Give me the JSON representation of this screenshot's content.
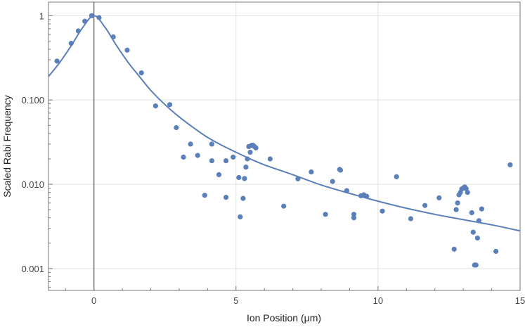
{
  "chart_data": {
    "type": "scatter",
    "title": "",
    "xlabel": "Ion Position (μm)",
    "ylabel": "Scaled Rabi Frequency",
    "xlim": [
      -1.6,
      15
    ],
    "ylim": [
      0.00055,
      1.45
    ],
    "yscale": "log",
    "grid": true,
    "legend": "none",
    "xticks": [
      0,
      5,
      10,
      15
    ],
    "xtick_labels": [
      "0",
      "5",
      "10",
      "15"
    ],
    "yticks": [
      1,
      0.1,
      0.01,
      0.001
    ],
    "ytick_labels": [
      "1",
      "0.100",
      "0.010",
      "0.001"
    ],
    "colors": {
      "points": "#5b7fb8",
      "curve": "#5b7fb8",
      "grid": "#e3e3e3",
      "axis": "#777777",
      "zero_line": "#555555"
    },
    "series": [
      {
        "kind": "points",
        "x": [
          -1.3,
          -0.8,
          -0.55,
          -0.32,
          -0.08,
          0.18,
          0.68,
          1.17,
          1.67,
          2.17,
          2.67,
          2.9,
          3.15,
          3.4,
          3.65,
          3.9,
          4.15,
          4.15,
          4.4,
          4.65,
          4.65,
          4.9,
          5.1,
          5.15,
          5.25,
          5.3,
          5.35,
          5.4,
          5.45,
          5.5,
          5.55,
          5.6,
          5.65,
          5.7,
          6.2,
          6.68,
          7.18,
          7.65,
          8.15,
          8.4,
          8.65,
          8.68,
          8.9,
          9.15,
          9.15,
          9.4,
          9.5,
          9.6,
          10.15,
          10.65,
          11.15,
          11.65,
          12.15,
          12.68,
          12.75,
          12.8,
          12.85,
          12.9,
          12.95,
          13.0,
          13.05,
          13.1,
          13.15,
          13.3,
          13.35,
          13.4,
          13.45,
          13.5,
          13.55,
          13.65,
          14.15,
          14.65
        ],
        "y": [
          0.29,
          0.47,
          0.66,
          0.86,
          1.0,
          0.95,
          0.56,
          0.39,
          0.21,
          0.085,
          0.088,
          0.047,
          0.021,
          0.03,
          0.022,
          0.0074,
          0.019,
          0.03,
          0.013,
          0.007,
          0.019,
          0.021,
          0.012,
          0.0041,
          0.0068,
          0.0117,
          0.016,
          0.02,
          0.028,
          0.024,
          0.029,
          0.029,
          0.028,
          0.027,
          0.02,
          0.0055,
          0.0116,
          0.014,
          0.0044,
          0.0108,
          0.015,
          0.0147,
          0.0084,
          0.0044,
          0.004,
          0.0073,
          0.0075,
          0.0072,
          0.0048,
          0.0123,
          0.0039,
          0.0056,
          0.0069,
          0.0017,
          0.005,
          0.006,
          0.0075,
          0.008,
          0.0088,
          0.009,
          0.0093,
          0.0089,
          0.008,
          0.0046,
          0.0027,
          0.0011,
          0.0011,
          0.0023,
          0.0037,
          0.0051,
          0.0016,
          0.017
        ]
      },
      {
        "kind": "fit_curve",
        "x": [
          -1.6,
          -1.2,
          -0.8,
          -0.4,
          0.0,
          0.4,
          0.8,
          1.2,
          1.6,
          2.0,
          2.5,
          3.0,
          3.5,
          4.0,
          4.5,
          5.0,
          5.5,
          6.0,
          7.0,
          8.0,
          9.0,
          10.0,
          11.0,
          12.0,
          13.0,
          14.0,
          15.0
        ],
        "y": [
          0.19,
          0.28,
          0.44,
          0.72,
          1.0,
          0.72,
          0.44,
          0.28,
          0.19,
          0.13,
          0.088,
          0.063,
          0.047,
          0.036,
          0.029,
          0.024,
          0.02,
          0.017,
          0.013,
          0.0098,
          0.0078,
          0.0063,
          0.0052,
          0.0044,
          0.0038,
          0.0033,
          0.0028
        ]
      }
    ]
  }
}
